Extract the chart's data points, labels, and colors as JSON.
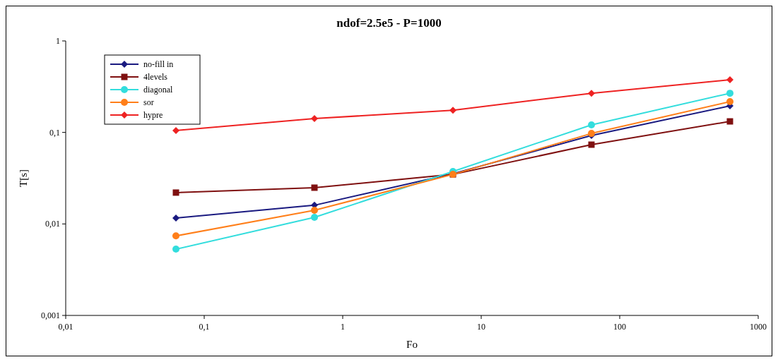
{
  "chart_data": {
    "type": "line",
    "title": "ndof=2.5e5 - P=1000",
    "xlabel": "Fo",
    "ylabel": "T[s]",
    "log": "xy",
    "grid": false,
    "legend": "top left",
    "x": [
      0.0625,
      0.625,
      6.25,
      62.5,
      625
    ],
    "xlim": [
      0.01,
      1000
    ],
    "xticks": [
      {
        "value": 0.01,
        "label": "0,01"
      },
      {
        "value": 0.1,
        "label": "0,1"
      },
      1,
      10,
      100,
      1000
    ],
    "ylim": [
      0.001,
      1
    ],
    "yticks": [
      {
        "value": 0.001,
        "label": "0,001"
      },
      {
        "value": 0.01,
        "label": "0,01"
      },
      {
        "value": 0.1,
        "label": "0,1"
      },
      1
    ],
    "series": [
      {
        "name": "no-fill in",
        "color": "#1a1a80",
        "marker": "diamond",
        "values": [
          0.0116,
          0.016,
          0.0354,
          0.0925,
          0.195
        ]
      },
      {
        "name": "4levels",
        "color": "#7f1010",
        "marker": "square",
        "values": [
          0.022,
          0.0249,
          0.0348,
          0.0735,
          0.132
        ]
      },
      {
        "name": "diagonal",
        "color": "#33dddd",
        "marker": "circle",
        "values": [
          0.0053,
          0.0118,
          0.0374,
          0.121,
          0.268
        ]
      },
      {
        "name": "sor",
        "color": "#ff7f1a",
        "marker": "circle",
        "values": [
          0.0074,
          0.0141,
          0.0348,
          0.0975,
          0.217
        ]
      },
      {
        "name": "hypre",
        "color": "#ee2222",
        "marker": "diamond",
        "values": [
          0.105,
          0.1416,
          0.175,
          0.268,
          0.376
        ]
      }
    ]
  }
}
